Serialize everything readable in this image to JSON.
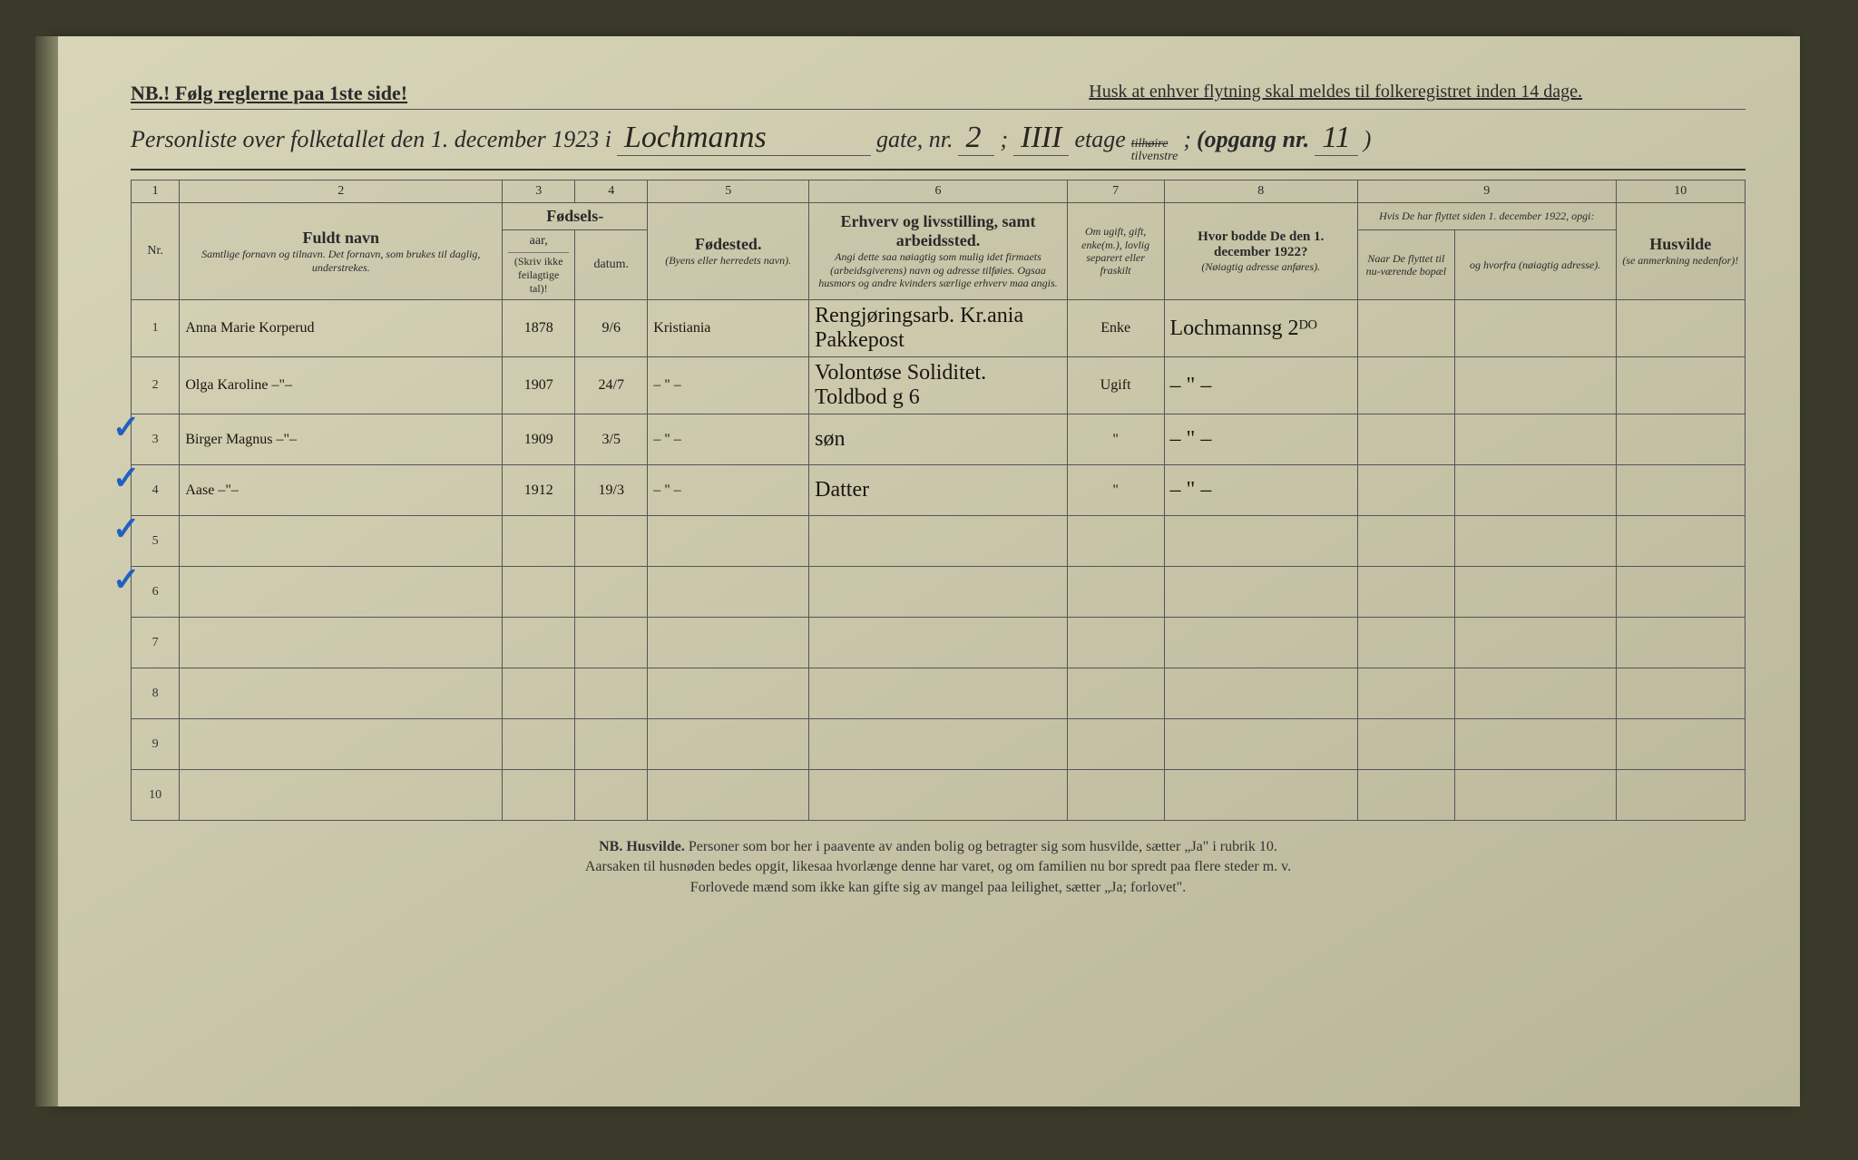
{
  "header": {
    "nb_line": "NB.! Følg reglerne paa 1ste side!",
    "husk_line": "Husk at enhver flytning skal meldes til folkeregistret inden 14 dage.",
    "personliste_prefix": "Personliste over folketallet den 1. december 1923 i",
    "street": "Lochmanns",
    "gate_label": "gate, nr.",
    "gate_nr": "2",
    "semicolon1": ";",
    "etage_nr": "IIII",
    "etage_label": "etage",
    "side_struck": "tilhøire",
    "side": "tilvenstre",
    "semicolon2": ";",
    "opgang_label": "(opgang nr.",
    "opgang_nr": "11",
    "opgang_close": ")"
  },
  "columns": {
    "nums": [
      "1",
      "2",
      "3",
      "4",
      "5",
      "6",
      "7",
      "8",
      "9",
      "10"
    ],
    "col1": "Nr.",
    "col2_main": "Fuldt navn",
    "col2_sub": "Samtlige fornavn og tilnavn. Det fornavn, som brukes til daglig, understrekes.",
    "col34_main": "Fødsels-",
    "col3": "aar,",
    "col4": "datum.",
    "col34_sub": "(Skriv ikke feilagtige tal)!",
    "col5_main": "Fødested.",
    "col5_sub": "(Byens eller herredets navn).",
    "col6_main": "Erhverv og livsstilling, samt arbeidssted.",
    "col6_sub": "Angi dette saa nøiagtig som mulig idet firmaets (arbeidsgiverens) navn og adresse tilføies. Ogsaa husmors og andre kvinders særlige erhverv maa angis.",
    "col7": "Om ugift, gift, enke(m.), lovlig separert eller fraskilt",
    "col8_main": "Hvor bodde De den 1. december 1922?",
    "col8_sub": "(Nøiagtig adresse anføres).",
    "col9_top": "Hvis De har flyttet siden 1. december 1922, opgi:",
    "col9a": "Naar De flyttet til nu-værende bopæl",
    "col9b": "og hvorfra (nøiagtig adresse).",
    "col10_main": "Husvilde",
    "col10_sub": "(se anmerkning nedenfor)!"
  },
  "rows": [
    {
      "nr": "1",
      "name": "Anna Marie Korperud",
      "year": "1878",
      "date": "9/6",
      "birthplace": "Kristiania",
      "occupation": "Rengjøringsarb. Kr.ania Pakkepost",
      "status": "Enke",
      "addr1922": "Lochmannsg 2ᴰᴼ",
      "moved_when": "",
      "moved_from": "",
      "husvilde": ""
    },
    {
      "nr": "2",
      "name": "Olga Karoline   –\"–",
      "year": "1907",
      "date": "24/7",
      "birthplace": "–  \"  –",
      "occupation": "Volontøse Soliditet. Toldbod g 6",
      "status": "Ugift",
      "addr1922": "–  \"  –",
      "moved_when": "",
      "moved_from": "",
      "husvilde": ""
    },
    {
      "nr": "3",
      "name": "Birger Magnus  –\"–",
      "year": "1909",
      "date": "3/5",
      "birthplace": "–  \"  –",
      "occupation": "søn",
      "status": "\"",
      "addr1922": "–  \"  –",
      "moved_when": "",
      "moved_from": "",
      "husvilde": ""
    },
    {
      "nr": "4",
      "name": "Aase            –\"–",
      "year": "1912",
      "date": "19/3",
      "birthplace": "–  \"  –",
      "occupation": "Datter",
      "status": "\"",
      "addr1922": "–  \"  –",
      "moved_when": "",
      "moved_from": "",
      "husvilde": ""
    }
  ],
  "empty_rows": [
    "5",
    "6",
    "7",
    "8",
    "9",
    "10"
  ],
  "footer": {
    "line1_nb": "NB.  Husvilde.",
    "line1": "Personer som bor her i paavente av anden bolig og betragter sig som husvilde, sætter „Ja\" i rubrik 10.",
    "line2": "Aarsaken til husnøden bedes opgit, likesaa hvorlænge denne har varet, og om familien nu bor spredt paa flere steder m. v.",
    "line3": "Forlovede mænd som ikke kan gifte sig av mangel paa leilighet, sætter „Ja; forlovet\"."
  }
}
